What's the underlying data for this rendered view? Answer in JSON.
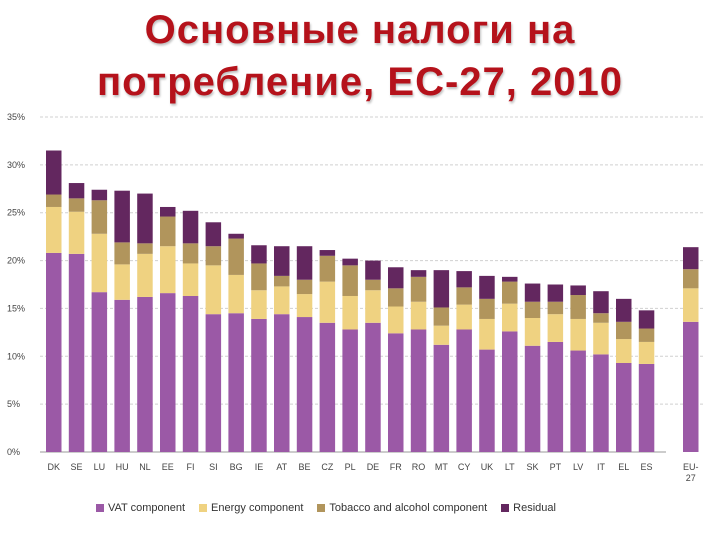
{
  "title": {
    "line1": "Основные налоги на",
    "line2": "потребление, ЕС-27, 2010"
  },
  "colors": {
    "vat": "#9b59a6",
    "energy": "#efd281",
    "tobacco": "#b1955c",
    "residual": "#63275f",
    "grid": "#d0d0d0"
  },
  "chart_data": {
    "type": "bar",
    "stacked": true,
    "ylim": [
      0,
      35
    ],
    "yticks": [
      "0%",
      "5%",
      "10%",
      "15%",
      "20%",
      "25%",
      "30%",
      "35%"
    ],
    "grid": "horizontal dashed",
    "legend_position": "bottom",
    "categories": [
      "DK",
      "SE",
      "LU",
      "HU",
      "NL",
      "EE",
      "FI",
      "SI",
      "BG",
      "IE",
      "AT",
      "BE",
      "CZ",
      "PL",
      "DE",
      "FR",
      "RO",
      "MT",
      "CY",
      "UK",
      "LT",
      "SK",
      "PT",
      "LV",
      "IT",
      "EL",
      "ES",
      "EU-27"
    ],
    "series": [
      {
        "name": "VAT component",
        "values": [
          20.8,
          20.7,
          16.7,
          15.9,
          16.2,
          16.6,
          16.3,
          14.4,
          14.5,
          13.9,
          14.4,
          14.1,
          13.5,
          12.8,
          13.5,
          12.4,
          12.8,
          11.2,
          12.8,
          10.7,
          12.6,
          11.1,
          11.5,
          10.6,
          10.2,
          9.3,
          9.2,
          13.6
        ]
      },
      {
        "name": "Energy component",
        "values": [
          4.8,
          4.4,
          6.1,
          3.7,
          4.5,
          4.9,
          3.4,
          5.1,
          4.0,
          3.0,
          2.9,
          2.4,
          4.3,
          3.5,
          3.4,
          2.8,
          2.9,
          2.0,
          2.6,
          3.2,
          2.9,
          2.9,
          2.9,
          3.3,
          3.3,
          2.5,
          2.3,
          3.5
        ]
      },
      {
        "name": "Tobacco and alcohol component",
        "values": [
          1.3,
          1.4,
          3.5,
          2.3,
          1.1,
          3.1,
          2.1,
          2.0,
          3.8,
          2.8,
          1.1,
          1.5,
          2.7,
          3.2,
          1.1,
          1.9,
          2.6,
          1.9,
          1.8,
          2.1,
          2.3,
          1.7,
          1.3,
          2.5,
          1.0,
          1.8,
          1.4,
          2.0
        ]
      },
      {
        "name": "Residual",
        "values": [
          4.6,
          1.6,
          1.1,
          5.4,
          5.2,
          1.0,
          3.4,
          2.5,
          0.5,
          1.9,
          3.1,
          3.5,
          0.6,
          0.7,
          2.0,
          2.2,
          0.7,
          3.9,
          1.7,
          2.4,
          0.5,
          1.9,
          1.8,
          1.0,
          2.3,
          2.4,
          1.9,
          2.3
        ]
      }
    ]
  }
}
